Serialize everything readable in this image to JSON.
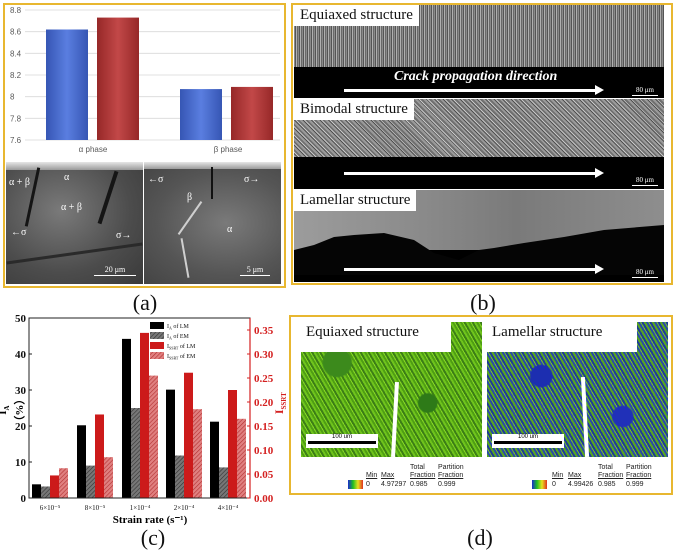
{
  "figure": {
    "panels": [
      {
        "id": "a",
        "label": "(a)"
      },
      {
        "id": "b",
        "label": "(b)"
      },
      {
        "id": "c",
        "label": "(c)"
      },
      {
        "id": "d",
        "label": "(d)"
      }
    ]
  },
  "panel_a": {
    "chart": {
      "yticks": [
        "8.8",
        "8.6",
        "8.4",
        "8.2",
        "8",
        "7.8",
        "7.6"
      ],
      "categories": [
        "α phase",
        "β phase"
      ],
      "series_colors": [
        "#4468c8",
        "#b03434"
      ]
    },
    "sem_left": {
      "labels": [
        "α + β",
        "α",
        "α + β",
        "←σ",
        "σ→"
      ],
      "scalebar": "20 μm"
    },
    "sem_right": {
      "labels": [
        "←σ",
        "σ→",
        "β",
        "α"
      ],
      "scalebar": "5 μm"
    }
  },
  "panel_b": {
    "images": [
      {
        "title": "Equiaxed structure",
        "caption": "Crack propagation direction",
        "scalebar": "80 μm"
      },
      {
        "title": "Bimodal structure",
        "caption": "",
        "scalebar": "80 μm"
      },
      {
        "title": "Lamellar structure",
        "caption": "",
        "scalebar": "80 μm"
      }
    ]
  },
  "panel_d": {
    "maps": [
      {
        "title": "Equiaxed structure",
        "scalebar": "100 um",
        "legend": {
          "min_label": "Min",
          "max_label": "Max",
          "total_label_1": "Total",
          "total_label_2": "Fraction",
          "partition_label_1": "Partition",
          "partition_label_2": "Fraction",
          "min": "0",
          "max": "4.97297",
          "total": "0.985",
          "partition": "0.999"
        }
      },
      {
        "title": "Lamellar structure",
        "scalebar": "100 um",
        "legend": {
          "min_label": "Min",
          "max_label": "Max",
          "total_label_1": "Total",
          "total_label_2": "Fraction",
          "partition_label_1": "Partition",
          "partition_label_2": "Fraction",
          "min": "0",
          "max": "4.99426",
          "total": "0.985",
          "partition": "0.999"
        }
      }
    ]
  },
  "chart_data": [
    {
      "type": "bar",
      "panel": "a",
      "title": "",
      "categories": [
        "α phase",
        "β phase"
      ],
      "series": [
        {
          "name": "series 1 (blue)",
          "color": "#4468c8",
          "values": [
            8.62,
            8.07
          ]
        },
        {
          "name": "series 2 (red)",
          "color": "#b03434",
          "values": [
            8.73,
            8.09
          ]
        }
      ],
      "xlabel": "",
      "ylabel": "",
      "ylim": [
        7.6,
        8.8
      ],
      "yticks": [
        7.6,
        7.8,
        8.0,
        8.2,
        8.4,
        8.6,
        8.8
      ],
      "grid": true,
      "legend": "none"
    },
    {
      "type": "bar",
      "panel": "c",
      "title": "",
      "categories": [
        "6×10⁻⁵",
        "8×10⁻⁵",
        "1×10⁻⁴",
        "2×10⁻⁴",
        "4×10⁻⁴"
      ],
      "series": [
        {
          "name": "I_A of LM",
          "axis": "left",
          "color": "#000000",
          "pattern": "solid",
          "values": [
            3.8,
            20.2,
            44.2,
            30.1,
            21.2
          ]
        },
        {
          "name": "I_A of EM",
          "axis": "left",
          "color": "#555555",
          "pattern": "hatched",
          "values": [
            3.2,
            9.0,
            25.0,
            11.8,
            8.5
          ]
        },
        {
          "name": "I_SSRT of LM",
          "axis": "right",
          "color": "#cc1a1a",
          "pattern": "solid",
          "values": [
            0.047,
            0.174,
            0.344,
            0.261,
            0.225
          ]
        },
        {
          "name": "I_SSRT of EM",
          "axis": "right",
          "color": "#d46060",
          "pattern": "hatched",
          "values": [
            0.062,
            0.085,
            0.255,
            0.185,
            0.165
          ]
        }
      ],
      "xlabel": "Strain rate (s⁻¹)",
      "ylabel": "I_A（%）",
      "ylabel_right": "I_SSRT",
      "ylim": [
        0,
        50
      ],
      "ylim_right": [
        0,
        0.375
      ],
      "yticks": [
        0,
        10,
        20,
        30,
        40,
        50
      ],
      "yticks_right": [
        0.0,
        0.05,
        0.1,
        0.15,
        0.2,
        0.25,
        0.3,
        0.35
      ],
      "legend": "upper right (inside)",
      "legend_entries": [
        {
          "base": "I",
          "sub": "A",
          "suffix": " of LM"
        },
        {
          "base": "I",
          "sub": "A",
          "suffix": " of EM"
        },
        {
          "base": "I",
          "sub": "SSRT",
          "suffix": " of LM"
        },
        {
          "base": "I",
          "sub": "SSRT",
          "suffix": " of EM"
        }
      ],
      "right_axis_color": "#d42020",
      "yticks_right_labels": [
        "0.00",
        "0.05",
        "0.10",
        "0.15",
        "0.20",
        "0.25",
        "0.30",
        "0.35"
      ],
      "yticks_left_labels": [
        "0",
        "10",
        "20",
        "30",
        "40",
        "50"
      ]
    }
  ]
}
